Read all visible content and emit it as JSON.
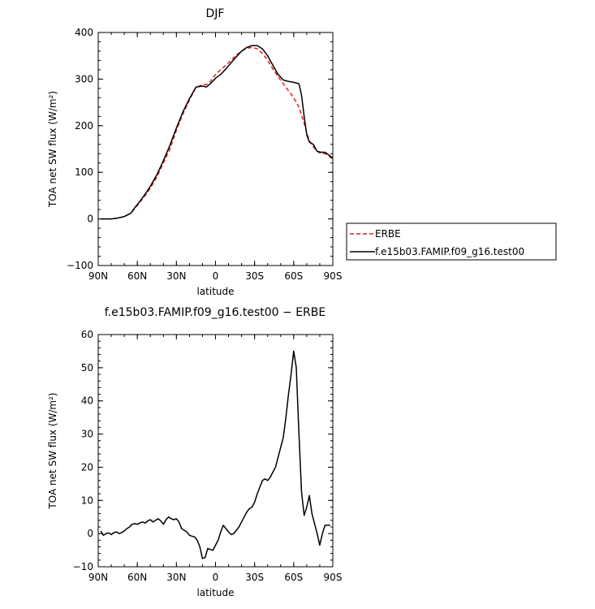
{
  "chart_data": [
    {
      "type": "line",
      "title": "DJF",
      "xlabel": "latitude",
      "ylabel": "TOA net SW flux (W/m²)",
      "xlim": [
        90,
        -90
      ],
      "ylim": [
        -100,
        400
      ],
      "x_ticks": [
        90,
        60,
        30,
        0,
        -30,
        -60,
        -90
      ],
      "x_tick_labels": [
        "90N",
        "60N",
        "30N",
        "0",
        "30S",
        "60S",
        "90S"
      ],
      "y_ticks": [
        -100,
        0,
        100,
        200,
        300,
        400
      ],
      "y_tick_labels": [
        "−100",
        "0",
        "100",
        "200",
        "300",
        "400"
      ],
      "legend_position": "right",
      "series": [
        {
          "name": "ERBE",
          "color": "#dd2222",
          "dash": "dashed",
          "x": [
            88,
            80,
            75,
            70,
            65,
            62,
            58,
            54,
            50,
            45,
            40,
            35,
            30,
            25,
            20,
            15,
            10,
            7,
            4,
            0,
            -4,
            -8,
            -12,
            -16,
            -20,
            -24,
            -28,
            -32,
            -36,
            -40,
            -44,
            -48,
            -52,
            -56,
            -60,
            -64,
            -68,
            -70,
            -72,
            -75,
            -78,
            -81,
            -84,
            -87,
            -90
          ],
          "y": [
            0,
            0,
            2,
            5,
            12,
            22,
            36,
            50,
            66,
            90,
            120,
            150,
            190,
            225,
            255,
            282,
            288,
            288,
            295,
            310,
            320,
            330,
            340,
            352,
            360,
            366,
            368,
            365,
            355,
            340,
            322,
            305,
            290,
            275,
            260,
            240,
            205,
            185,
            168,
            155,
            145,
            140,
            140,
            135,
            128
          ]
        },
        {
          "name": "f.e15b03.FAMIP.f09_g16.test00",
          "color": "#000000",
          "dash": "solid",
          "x": [
            88,
            80,
            75,
            70,
            65,
            62,
            58,
            54,
            50,
            45,
            40,
            35,
            30,
            25,
            20,
            15,
            10,
            7,
            4,
            0,
            -4,
            -8,
            -12,
            -16,
            -20,
            -24,
            -28,
            -32,
            -36,
            -40,
            -44,
            -48,
            -52,
            -56,
            -60,
            -64,
            -66,
            -68,
            -70,
            -72,
            -75,
            -78,
            -81,
            -84,
            -87,
            -90
          ],
          "y": [
            0,
            0,
            2,
            5,
            12,
            24,
            38,
            53,
            70,
            95,
            125,
            158,
            195,
            230,
            258,
            283,
            285,
            283,
            290,
            302,
            310,
            322,
            335,
            348,
            360,
            368,
            372,
            372,
            365,
            350,
            330,
            310,
            298,
            295,
            293,
            290,
            265,
            220,
            180,
            165,
            160,
            145,
            143,
            143,
            137,
            130
          ]
        }
      ]
    },
    {
      "type": "line",
      "title": "f.e15b03.FAMIP.f09_g16.test00 − ERBE",
      "xlabel": "latitude",
      "ylabel": "TOA net SW flux (W/m²)",
      "xlim": [
        90,
        -90
      ],
      "ylim": [
        -10,
        60
      ],
      "x_ticks": [
        90,
        60,
        30,
        0,
        -30,
        -60,
        -90
      ],
      "x_tick_labels": [
        "90N",
        "60N",
        "30N",
        "0",
        "30S",
        "60S",
        "90S"
      ],
      "y_ticks": [
        -10,
        0,
        10,
        20,
        30,
        40,
        50,
        60
      ],
      "y_tick_labels": [
        "−10",
        "0",
        "10",
        "20",
        "30",
        "40",
        "50",
        "60"
      ],
      "series": [
        {
          "color": "#000000",
          "dash": "solid",
          "x": [
            88,
            86,
            84,
            82,
            80,
            78,
            76,
            74,
            72,
            70,
            68,
            66,
            64,
            62,
            60,
            58,
            56,
            54,
            52,
            50,
            48,
            46,
            44,
            42,
            40,
            38,
            36,
            34,
            32,
            30,
            28,
            26,
            24,
            22,
            20,
            18,
            16,
            14,
            12,
            10,
            8,
            6,
            4,
            2,
            0,
            -2,
            -4,
            -6,
            -8,
            -10,
            -12,
            -14,
            -16,
            -18,
            -20,
            -22,
            -24,
            -26,
            -28,
            -30,
            -32,
            -34,
            -36,
            -38,
            -40,
            -42,
            -44,
            -46,
            -48,
            -50,
            -52,
            -54,
            -56,
            -58,
            -60,
            -62,
            -64,
            -66,
            -68,
            -70,
            -72,
            -74,
            -76,
            -78,
            -80,
            -82,
            -84,
            -86,
            -88
          ],
          "y": [
            0.8,
            -0.5,
            0.0,
            0.2,
            -0.3,
            0.3,
            0.5,
            0.0,
            0.3,
            0.8,
            1.5,
            2.0,
            2.8,
            3.0,
            2.8,
            3.2,
            3.5,
            3.2,
            3.8,
            4.2,
            3.5,
            4.0,
            4.5,
            3.8,
            2.8,
            4.2,
            5.0,
            4.5,
            4.2,
            4.5,
            3.5,
            1.5,
            1.0,
            0.5,
            -0.5,
            -0.8,
            -1.0,
            -2.0,
            -4.0,
            -7.5,
            -7.2,
            -4.5,
            -4.8,
            -5.0,
            -3.5,
            -2.0,
            0.5,
            2.5,
            1.5,
            0.5,
            -0.3,
            0.0,
            1.0,
            2.0,
            3.5,
            5.0,
            6.5,
            7.5,
            8.0,
            9.5,
            12.0,
            14.0,
            16.0,
            16.5,
            16.0,
            17.0,
            18.5,
            20.0,
            23.0,
            26.0,
            29.0,
            35.0,
            42.0,
            48.0,
            55.0,
            50.0,
            30.0,
            12.5,
            5.5,
            8.0,
            11.5,
            6.0,
            3.0,
            0.0,
            -3.5,
            0.0,
            2.5,
            2.5,
            2.5
          ]
        }
      ]
    }
  ]
}
